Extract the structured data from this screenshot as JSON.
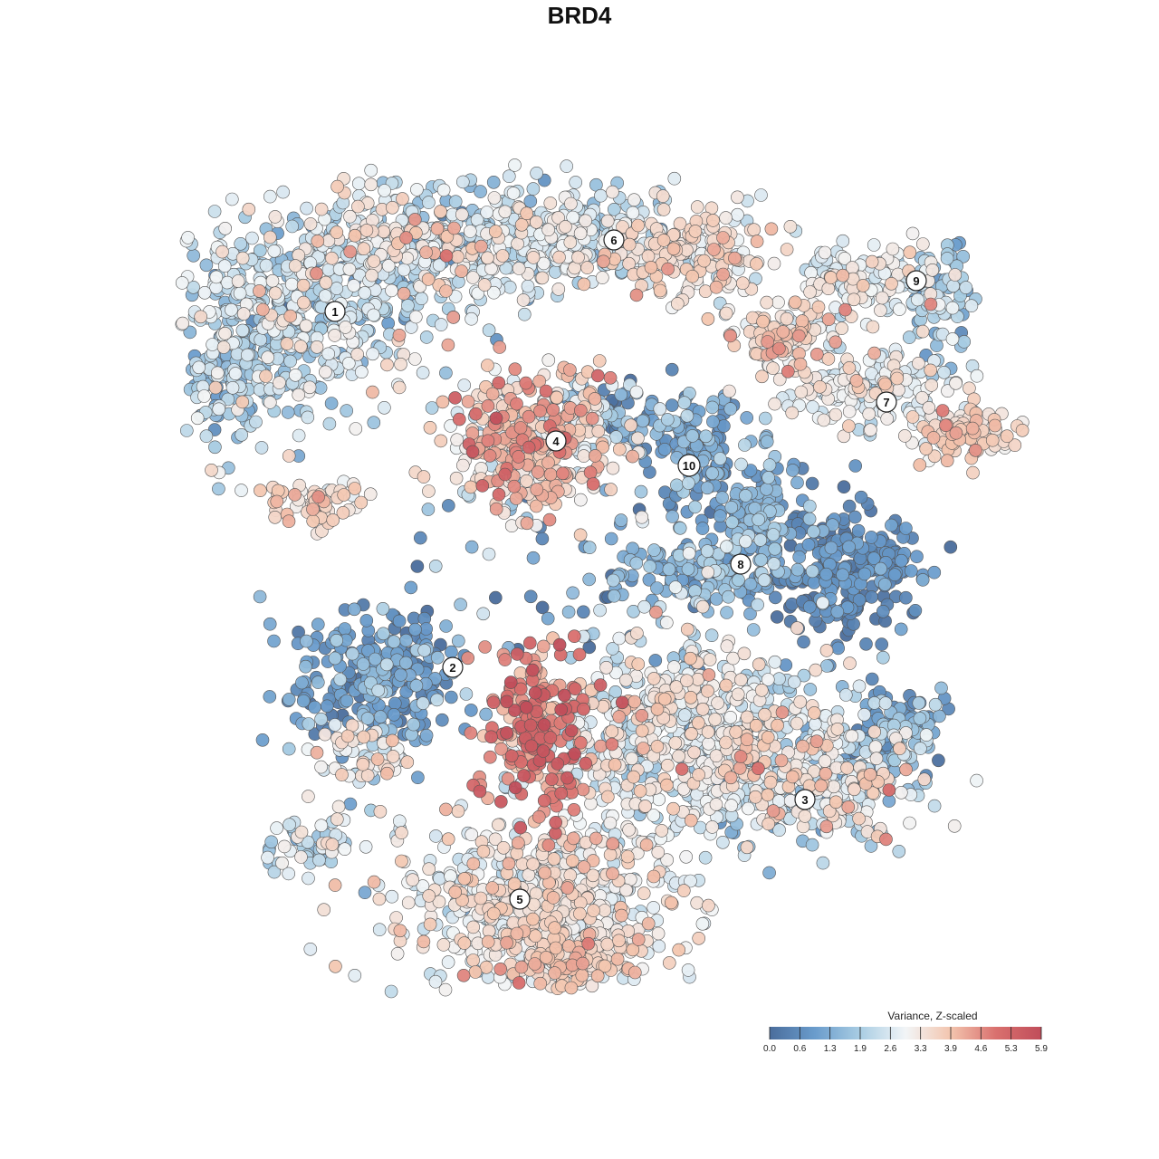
{
  "chart_data": {
    "type": "scatter",
    "title": "BRD4",
    "embedding": "tSNE",
    "point_count_approx": 6000,
    "color_scale": {
      "title": "Variance, Z-scaled",
      "min": 0.0,
      "max": 5.9,
      "ticks": [
        "0.0",
        "0.6",
        "1.3",
        "1.9",
        "2.6",
        "3.3",
        "3.9",
        "4.6",
        "5.3",
        "5.9"
      ],
      "palette": [
        "#4a6d9c",
        "#6a9ccc",
        "#a9cde3",
        "#f2f5f7",
        "#f3c5ae",
        "#d9706e",
        "#c04d5a"
      ],
      "legend_position": "bottom-right"
    },
    "clusters": [
      {
        "label": "1",
        "mean_value": 2.3
      },
      {
        "label": "2",
        "mean_value": 1.0
      },
      {
        "label": "3",
        "mean_value": 2.6
      },
      {
        "label": "4",
        "mean_value": 3.6
      },
      {
        "label": "5",
        "mean_value": 3.0
      },
      {
        "label": "6",
        "mean_value": 2.8
      },
      {
        "label": "7",
        "mean_value": 3.0
      },
      {
        "label": "8",
        "mean_value": 0.7
      },
      {
        "label": "9",
        "mean_value": 2.5
      },
      {
        "label": "10",
        "mean_value": 1.1
      }
    ],
    "grid": false,
    "axes_visible": false
  }
}
